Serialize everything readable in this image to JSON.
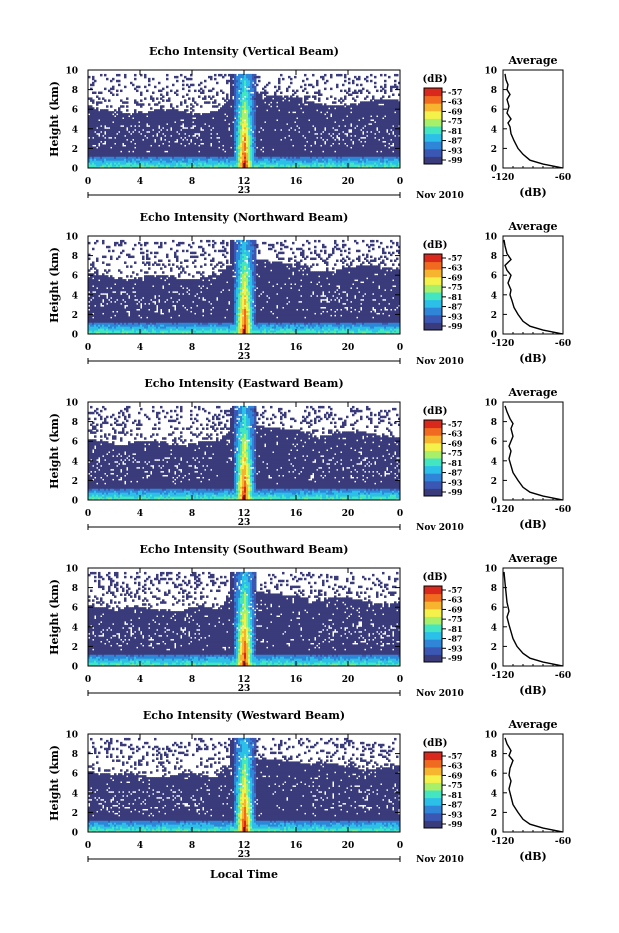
{
  "chart_data": {
    "type": "heatmap",
    "panels": [
      {
        "title": "Echo Intensity (Vertical Beam)",
        "avg_profile": [
          [
            -60,
            0
          ],
          [
            -80,
            0.4
          ],
          [
            -93,
            0.8
          ],
          [
            -100,
            1.4
          ],
          [
            -105,
            2
          ],
          [
            -109,
            2.8
          ],
          [
            -112,
            3.5
          ],
          [
            -113,
            4.2
          ],
          [
            -115,
            4.6
          ],
          [
            -112,
            5
          ],
          [
            -116,
            5.6
          ],
          [
            -114,
            6.3
          ],
          [
            -116,
            7
          ],
          [
            -113,
            7.5
          ],
          [
            -116,
            8
          ],
          [
            -115,
            8.5
          ],
          [
            -117,
            9
          ],
          [
            -118,
            9.6
          ]
        ]
      },
      {
        "title": "Echo Intensity (Northward Beam)",
        "avg_profile": [
          [
            -60,
            0
          ],
          [
            -80,
            0.4
          ],
          [
            -93,
            0.8
          ],
          [
            -100,
            1.3
          ],
          [
            -105,
            2
          ],
          [
            -109,
            2.7
          ],
          [
            -111,
            3.4
          ],
          [
            -113,
            4
          ],
          [
            -112,
            4.5
          ],
          [
            -115,
            5.2
          ],
          [
            -112,
            6
          ],
          [
            -116,
            6.5
          ],
          [
            -118,
            7
          ],
          [
            -112,
            7.6
          ],
          [
            -116,
            8.2
          ],
          [
            -118,
            9
          ],
          [
            -119,
            9.6
          ]
        ]
      },
      {
        "title": "Echo Intensity (Eastward Beam)",
        "avg_profile": [
          [
            -60,
            0
          ],
          [
            -80,
            0.4
          ],
          [
            -93,
            0.8
          ],
          [
            -100,
            1.3
          ],
          [
            -105,
            2
          ],
          [
            -110,
            2.8
          ],
          [
            -112,
            3.5
          ],
          [
            -114,
            4.2
          ],
          [
            -112,
            5
          ],
          [
            -114,
            5.5
          ],
          [
            -110,
            6.5
          ],
          [
            -112,
            7.3
          ],
          [
            -110,
            7.8
          ],
          [
            -113,
            8.3
          ],
          [
            -116,
            9
          ],
          [
            -118,
            9.6
          ]
        ]
      },
      {
        "title": "Echo Intensity (Southward Beam)",
        "avg_profile": [
          [
            -60,
            0
          ],
          [
            -80,
            0.4
          ],
          [
            -93,
            0.8
          ],
          [
            -100,
            1.3
          ],
          [
            -106,
            2
          ],
          [
            -110,
            2.8
          ],
          [
            -112,
            3.5
          ],
          [
            -114,
            4.2
          ],
          [
            -116,
            5
          ],
          [
            -114,
            5.6
          ],
          [
            -116,
            6.5
          ],
          [
            -117,
            7.5
          ],
          [
            -118,
            8.5
          ],
          [
            -119,
            9.6
          ]
        ]
      },
      {
        "title": "Echo Intensity (Westward Beam)",
        "avg_profile": [
          [
            -60,
            0
          ],
          [
            -80,
            0.4
          ],
          [
            -93,
            0.8
          ],
          [
            -100,
            1.3
          ],
          [
            -105,
            2
          ],
          [
            -110,
            2.8
          ],
          [
            -112,
            3.6
          ],
          [
            -114,
            4.4
          ],
          [
            -112,
            5.2
          ],
          [
            -114,
            5.8
          ],
          [
            -113,
            6.5
          ],
          [
            -110,
            7.3
          ],
          [
            -114,
            7.8
          ],
          [
            -112,
            8.3
          ],
          [
            -116,
            9
          ],
          [
            -118,
            9.6
          ]
        ]
      }
    ],
    "ylabel": "Height (km)",
    "ylim": [
      0,
      10
    ],
    "yticks": [
      "0",
      "2",
      "4",
      "6",
      "8",
      "10"
    ],
    "xlim": [
      0,
      24
    ],
    "xticks": [
      "0",
      "4",
      "8",
      "12",
      "16",
      "20",
      "0"
    ],
    "date_day": "23",
    "date_month": "Nov 2010",
    "xlabel": "Local Time",
    "colorbar_label": "(dB)",
    "colorbar_ticks": [
      "-57",
      "-63",
      "-69",
      "-75",
      "-81",
      "-87",
      "-93",
      "-99"
    ],
    "avg_title": "Average",
    "avg_xlabel": "(dB)",
    "avg_xticks": [
      "-120",
      "-60"
    ],
    "avg_xlim": [
      -120,
      -60
    ],
    "colormap": [
      "#3a3b7a",
      "#3a57b4",
      "#2f86d8",
      "#2cc0e8",
      "#43e6c0",
      "#a9f06a",
      "#f4f24a",
      "#f7b42e",
      "#f06a20",
      "#d9281c"
    ],
    "background_color": "#3a3b7a",
    "no_data_color": "#ffffff"
  }
}
